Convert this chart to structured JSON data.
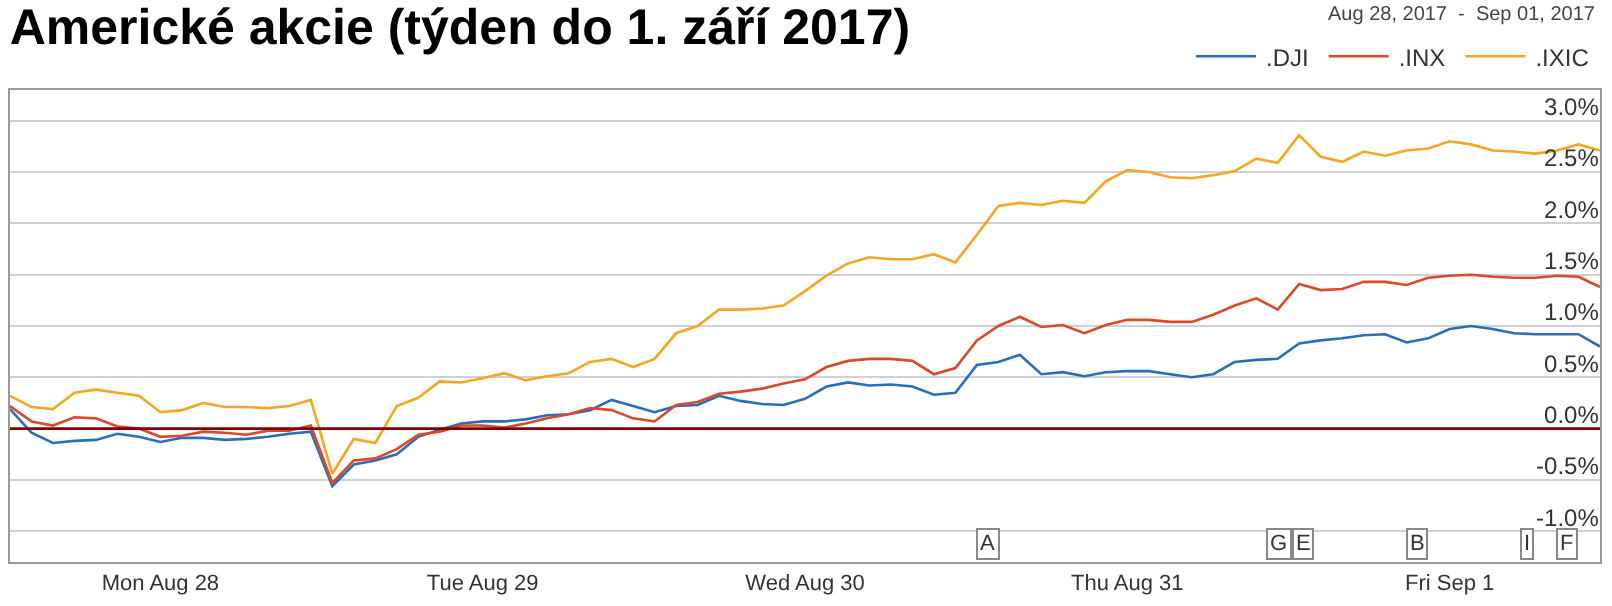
{
  "chart_data": {
    "type": "line",
    "title": "Americké akcie (týden do 1. září 2017)",
    "subtitle": "Aug 28, 2017  -  Sep 01, 2017",
    "categories": [
      null,
      null,
      null,
      null,
      null,
      null,
      null,
      "Mon Aug 28",
      null,
      null,
      null,
      null,
      null,
      null,
      null,
      null,
      null,
      null,
      null,
      null,
      null,
      null,
      "Tue Aug 29",
      null,
      null,
      null,
      null,
      null,
      null,
      null,
      null,
      null,
      null,
      null,
      null,
      null,
      null,
      "Wed Aug 30",
      null,
      null,
      null,
      null,
      null,
      null,
      null,
      null,
      null,
      null,
      null,
      null,
      null,
      null,
      "Thu Aug 31",
      null,
      null,
      null,
      null,
      null,
      null,
      null,
      null,
      null,
      null,
      null,
      null,
      null,
      null,
      "Fri Sep 1",
      null,
      null,
      null,
      null,
      null,
      null,
      null
    ],
    "ylim": [
      -1.3,
      3.3
    ],
    "yticks": [
      {
        "value": -1,
        "label": "-1.0%"
      },
      {
        "value": -0.5,
        "label": "-0.5%"
      },
      {
        "value": 0,
        "label": "0.0%"
      },
      {
        "value": 0.5,
        "label": "0.5%"
      },
      {
        "value": 1,
        "label": "1.0%"
      },
      {
        "value": 1.5,
        "label": "1.5%"
      },
      {
        "value": 2,
        "label": "2.0%"
      },
      {
        "value": 2.5,
        "label": "2.5%"
      },
      {
        "value": 3,
        "label": "3.0%"
      }
    ],
    "grid": "y",
    "legend": "top right",
    "line_style": "solid",
    "ref_lines": [
      {
        "axis": "y",
        "value": 0,
        "label": null,
        "color": "#800000"
      }
    ],
    "annotations": [
      "A",
      "G",
      "E",
      "B",
      "I",
      "F"
    ],
    "series": [
      {
        "name": ".DJI",
        "color": "#2a6ebb",
        "values": [
          0.19,
          -0.04,
          -0.14,
          -0.12,
          -0.11,
          -0.05,
          -0.08,
          -0.13,
          -0.09,
          -0.09,
          -0.11,
          -0.1,
          -0.08,
          -0.05,
          -0.03,
          -0.56,
          -0.35,
          -0.31,
          -0.25,
          -0.08,
          -0.01,
          0.05,
          0.07,
          0.07,
          0.09,
          0.13,
          0.14,
          0.18,
          0.28,
          0.22,
          0.16,
          0.22,
          0.23,
          0.32,
          0.27,
          0.24,
          0.23,
          0.29,
          0.41,
          0.45,
          0.42,
          0.43,
          0.41,
          0.33,
          0.35,
          0.62,
          0.65,
          0.72,
          0.53,
          0.55,
          0.51,
          0.55,
          0.56,
          0.56,
          0.53,
          0.5,
          0.53,
          0.65,
          0.67,
          0.68,
          0.83,
          0.86,
          0.88,
          0.91,
          0.92,
          0.84,
          0.88,
          0.97,
          1.0,
          0.97,
          0.93,
          0.92,
          0.92,
          0.92,
          0.8
        ]
      },
      {
        "name": ".INX",
        "color": "#d84a2a",
        "values": [
          0.22,
          0.07,
          0.03,
          0.11,
          0.1,
          0.02,
          0.0,
          -0.08,
          -0.07,
          -0.03,
          -0.04,
          -0.06,
          -0.02,
          -0.02,
          0.03,
          -0.53,
          -0.31,
          -0.29,
          -0.2,
          -0.06,
          -0.03,
          0.03,
          0.03,
          0.01,
          0.05,
          0.1,
          0.14,
          0.2,
          0.18,
          0.1,
          0.07,
          0.23,
          0.26,
          0.34,
          0.36,
          0.39,
          0.44,
          0.48,
          0.6,
          0.66,
          0.68,
          0.68,
          0.66,
          0.53,
          0.59,
          0.86,
          1.0,
          1.09,
          0.99,
          1.01,
          0.93,
          1.01,
          1.06,
          1.06,
          1.04,
          1.04,
          1.11,
          1.2,
          1.27,
          1.16,
          1.41,
          1.35,
          1.36,
          1.43,
          1.43,
          1.4,
          1.47,
          1.49,
          1.5,
          1.48,
          1.47,
          1.47,
          1.49,
          1.48,
          1.38
        ]
      },
      {
        "name": ".IXIC",
        "color": "#f5a623",
        "values": [
          0.32,
          0.21,
          0.19,
          0.35,
          0.38,
          0.35,
          0.32,
          0.16,
          0.18,
          0.25,
          0.21,
          0.21,
          0.2,
          0.22,
          0.28,
          -0.44,
          -0.1,
          -0.14,
          0.22,
          0.3,
          0.46,
          0.45,
          0.49,
          0.54,
          0.47,
          0.51,
          0.54,
          0.65,
          0.68,
          0.6,
          0.68,
          0.93,
          1.0,
          1.16,
          1.16,
          1.17,
          1.2,
          1.34,
          1.49,
          1.61,
          1.67,
          1.65,
          1.65,
          1.7,
          1.62,
          1.89,
          2.17,
          2.2,
          2.18,
          2.22,
          2.2,
          2.41,
          2.52,
          2.5,
          2.45,
          2.44,
          2.47,
          2.51,
          2.63,
          2.59,
          2.86,
          2.65,
          2.6,
          2.7,
          2.66,
          2.71,
          2.73,
          2.8,
          2.77,
          2.71,
          2.7,
          2.68,
          2.71,
          2.77,
          2.71
        ]
      }
    ]
  }
}
